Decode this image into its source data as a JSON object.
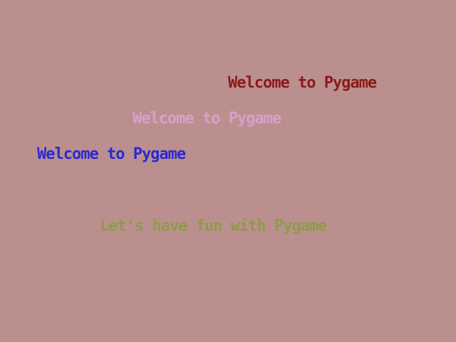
{
  "lines": [
    {
      "text": "Welcome to Pygame",
      "color": "#8b1a1a"
    },
    {
      "text": "Welcome to Pygame",
      "color": "#d8a0c8"
    },
    {
      "text": "Welcome to Pygame",
      "color": "#2a2ad0"
    },
    {
      "text": "Let's have fun with Pygame",
      "color": "#8f9a4a"
    }
  ]
}
